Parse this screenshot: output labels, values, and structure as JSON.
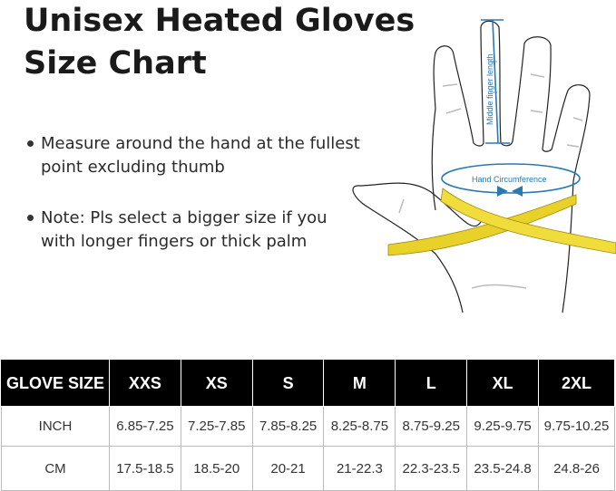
{
  "title": {
    "line1": "Unisex Heated Gloves",
    "line2": "Size Chart"
  },
  "bullets": [
    "Measure around the hand at the fullest point excluding thumb",
    "Note: Pls select a bigger size if you with longer fingers or thick palm"
  ],
  "illustration": {
    "finger_label": "Middle finger length",
    "circumference_label": "Hand Circumference",
    "accent_color": "#2a7ab0",
    "tape_color": "#e8d22a"
  },
  "table": {
    "header": [
      "GLOVE SIZE",
      "XXS",
      "XS",
      "S",
      "M",
      "L",
      "XL",
      "2XL"
    ],
    "rows": [
      {
        "label": "INCH",
        "values": [
          "6.85-7.25",
          "7.25-7.85",
          "7.85-8.25",
          "8.25-8.75",
          "8.75-9.25",
          "9.25-9.75",
          "9.75-10.25"
        ]
      },
      {
        "label": "CM",
        "values": [
          "17.5-18.5",
          "18.5-20",
          "20-21",
          "21-22.3",
          "22.3-23.5",
          "23.5-24.8",
          "24.8-26"
        ]
      }
    ]
  }
}
